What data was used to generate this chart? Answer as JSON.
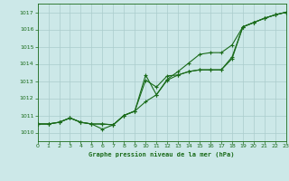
{
  "title": "Graphe pression niveau de la mer (hPa)",
  "bg_color": "#cce8e8",
  "grid_color": "#aacccc",
  "line_color": "#1a6b1a",
  "xlim": [
    0,
    23
  ],
  "ylim": [
    1009.5,
    1017.5
  ],
  "xticks": [
    0,
    1,
    2,
    3,
    4,
    5,
    6,
    7,
    8,
    9,
    10,
    11,
    12,
    13,
    14,
    15,
    16,
    17,
    18,
    19,
    20,
    21,
    22,
    23
  ],
  "yticks": [
    1010,
    1011,
    1012,
    1013,
    1014,
    1015,
    1016,
    1017
  ],
  "series1_x": [
    0,
    1,
    2,
    3,
    4,
    5,
    6,
    7,
    8,
    9,
    10,
    11,
    12,
    13,
    14,
    15,
    16,
    17,
    18,
    19,
    20,
    21,
    22,
    23
  ],
  "series1": [
    1010.5,
    1010.5,
    1010.6,
    1010.85,
    1010.6,
    1010.5,
    1010.5,
    1010.45,
    1011.0,
    1011.25,
    1013.05,
    1012.65,
    1013.3,
    1013.35,
    1013.55,
    1013.65,
    1013.65,
    1013.65,
    1014.3,
    1016.15,
    1016.4,
    1016.65,
    1016.85,
    1017.0
  ],
  "series2_x": [
    0,
    1,
    2,
    3,
    4,
    5,
    6,
    7,
    8,
    9,
    10,
    11,
    12,
    13,
    14,
    15,
    16,
    17,
    18,
    19,
    20,
    21,
    22,
    23
  ],
  "series2": [
    1010.5,
    1010.5,
    1010.6,
    1010.85,
    1010.6,
    1010.5,
    1010.5,
    1010.45,
    1011.0,
    1011.25,
    1013.35,
    1012.2,
    1013.1,
    1013.55,
    1014.05,
    1014.55,
    1014.65,
    1014.65,
    1015.1,
    1016.15,
    1016.4,
    1016.65,
    1016.85,
    1017.0
  ],
  "series3_x": [
    0,
    1,
    2,
    3,
    4,
    5,
    6,
    7,
    8,
    9,
    10,
    11,
    12,
    13,
    14,
    15,
    16,
    17,
    18,
    19,
    20,
    21,
    22,
    23
  ],
  "series3": [
    1010.5,
    1010.5,
    1010.6,
    1010.85,
    1010.6,
    1010.5,
    1010.2,
    1010.45,
    1011.0,
    1011.25,
    1011.8,
    1012.2,
    1013.05,
    1013.35,
    1013.55,
    1013.65,
    1013.65,
    1013.65,
    1014.4,
    1016.15,
    1016.4,
    1016.65,
    1016.85,
    1017.0
  ]
}
